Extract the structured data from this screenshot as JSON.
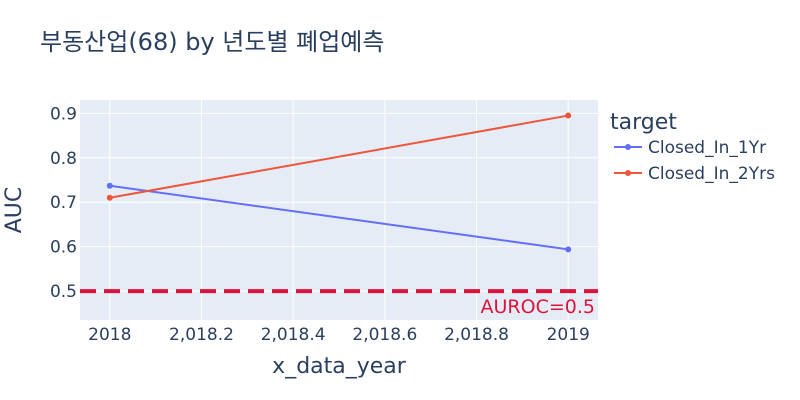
{
  "chart_data": {
    "type": "line",
    "title": "부동산업(68) by 년도별 폐업예측",
    "xlabel": "x_data_year",
    "ylabel": "AUC",
    "xlim": [
      2017.935,
      2019.065
    ],
    "ylim": [
      0.435,
      0.93
    ],
    "x_ticks": [
      2018,
      2018.2,
      2018.4,
      2018.6,
      2018.8,
      2019
    ],
    "x_tick_labels": [
      "2018",
      "2,018.2",
      "2,018.4",
      "2,018.6",
      "2,018.8",
      "2019"
    ],
    "y_ticks": [
      0.5,
      0.6,
      0.7,
      0.8,
      0.9
    ],
    "y_tick_labels": [
      "0.5",
      "0.6",
      "0.7",
      "0.8",
      "0.9"
    ],
    "grid": true,
    "legend": {
      "title": "target",
      "position": "right"
    },
    "series": [
      {
        "name": "Closed_In_1Yr",
        "color": "#636efa",
        "x": [
          2018,
          2019
        ],
        "y": [
          0.737,
          0.594
        ]
      },
      {
        "name": "Closed_In_2Yrs",
        "color": "#ef553b",
        "x": [
          2018,
          2019
        ],
        "y": [
          0.71,
          0.895
        ]
      }
    ],
    "reference_line": {
      "y": 0.5,
      "label": "AUROC=0.5",
      "color": "#dc143c",
      "style": "dashed"
    }
  },
  "colors": {
    "plot_background": "#e5ecf6",
    "grid": "#ffffff",
    "text": "#2a3f5f"
  }
}
